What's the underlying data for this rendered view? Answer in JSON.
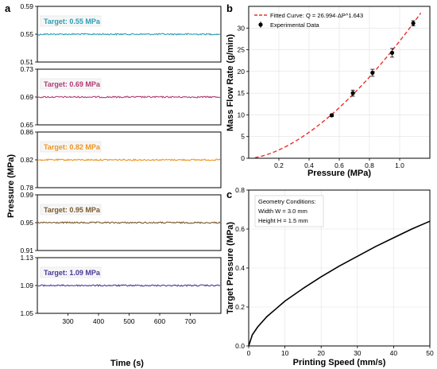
{
  "panel_labels": {
    "a": "a",
    "b": "b",
    "c": "c"
  },
  "chart_data": [
    {
      "id": "a",
      "type": "line",
      "xlabel": "Time (s)",
      "ylabel": "Pressure (MPa)",
      "xlim": [
        200,
        800
      ],
      "xticks": [
        "300",
        "400",
        "500",
        "600",
        "700"
      ],
      "subplots": [
        {
          "label": "Target: 0.55 MPa",
          "value": 0.55,
          "ylim": [
            0.51,
            0.59
          ],
          "yticks": [
            "0.51",
            "0.55",
            "0.59"
          ],
          "color": "#2b9db5"
        },
        {
          "label": "Target: 0.69 MPa",
          "value": 0.69,
          "ylim": [
            0.65,
            0.73
          ],
          "yticks": [
            "0.65",
            "0.69",
            "0.73"
          ],
          "color": "#b03a72"
        },
        {
          "label": "Target: 0.82 MPa",
          "value": 0.82,
          "ylim": [
            0.78,
            0.86
          ],
          "yticks": [
            "0.78",
            "0.82",
            "0.86"
          ],
          "color": "#f0941e"
        },
        {
          "label": "Target: 0.95 MPa",
          "value": 0.95,
          "ylim": [
            0.91,
            0.99
          ],
          "yticks": [
            "0.91",
            "0.95",
            "0.99"
          ],
          "color": "#7a5a2e"
        },
        {
          "label": "Target: 1.09 MPa",
          "value": 1.09,
          "ylim": [
            1.05,
            1.13
          ],
          "yticks": [
            "1.05",
            "1.09",
            "1.13"
          ],
          "color": "#4a3a9a"
        }
      ]
    },
    {
      "id": "b",
      "type": "scatter",
      "xlabel": "Pressure (MPa)",
      "ylabel": "Mass Flow Rate (g/min)",
      "xlim": [
        0,
        1.2
      ],
      "ylim": [
        0,
        35
      ],
      "xticks": [
        "0.2",
        "0.4",
        "0.6",
        "0.8",
        "1.0"
      ],
      "yticks": [
        "0",
        "5",
        "10",
        "15",
        "20",
        "25",
        "30"
      ],
      "grid": true,
      "legend": [
        "Fitted Curve: Q = 26.994·ΔP^1.643",
        "Experimental Data"
      ],
      "fit": {
        "coef": 26.994,
        "exponent": 1.643,
        "color": "#e8302a"
      },
      "series": [
        {
          "x": [
            0.55,
            0.69,
            0.82,
            0.95,
            1.09
          ],
          "y": [
            9.9,
            15.0,
            19.7,
            24.3,
            31.1
          ],
          "err": [
            0.3,
            0.7,
            0.8,
            1.0,
            0.6
          ]
        }
      ]
    },
    {
      "id": "c",
      "type": "line",
      "xlabel": "Printing Speed (mm/s)",
      "ylabel": "Target Pressure (MPa)",
      "xlim": [
        0,
        50
      ],
      "ylim": [
        0,
        0.8
      ],
      "xticks": [
        "0",
        "10",
        "20",
        "30",
        "40",
        "50"
      ],
      "yticks": [
        "0.0",
        "0.2",
        "0.4",
        "0.6",
        "0.8"
      ],
      "grid": true,
      "annotation": [
        "Geometry Conditions:",
        "Width W = 3.0 mm",
        "Height H = 1.5 mm"
      ],
      "curve": {
        "x": [
          0,
          1,
          2.5,
          5,
          7.5,
          10,
          15,
          20,
          25,
          30,
          35,
          40,
          45,
          50
        ],
        "y": [
          0,
          0.057,
          0.098,
          0.15,
          0.19,
          0.23,
          0.295,
          0.355,
          0.41,
          0.46,
          0.51,
          0.555,
          0.6,
          0.64
        ],
        "color": "#000000"
      }
    }
  ]
}
